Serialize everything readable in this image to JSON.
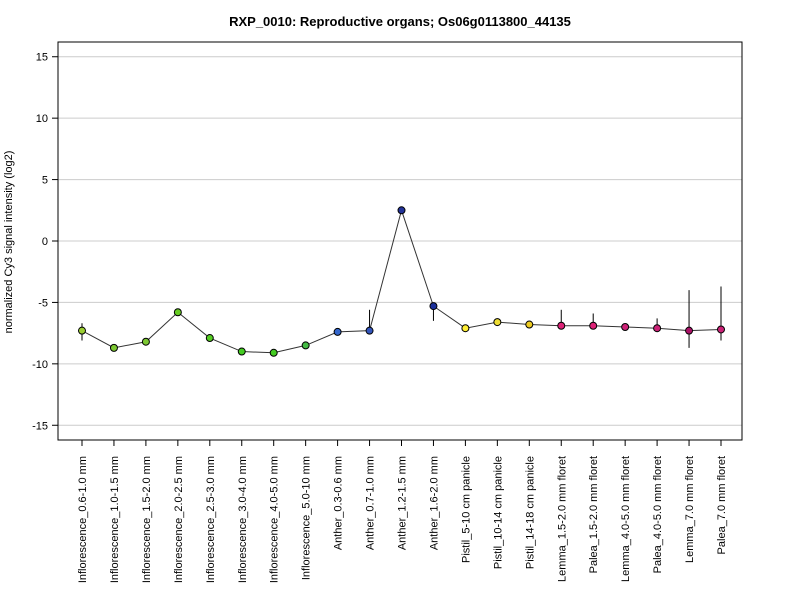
{
  "chart_data": {
    "type": "line",
    "title": "RXP_0010: Reproductive organs; Os06g0113800_44135",
    "ylabel": "normalized Cy3 signal intensity (log2)",
    "xlabel": "",
    "ylim": [
      -16.2,
      16.2
    ],
    "yticks": [
      15,
      10,
      5,
      0,
      -5,
      -10,
      -15
    ],
    "grid": true,
    "categories": [
      "Inflorescence_0.6-1.0 mm",
      "Inflorescence_1.0-1.5 mm",
      "Inflorescence_1.5-2.0 mm",
      "Inflorescence_2.0-2.5 mm",
      "Inflorescence_2.5-3.0 mm",
      "Inflorescence_3.0-4.0 mm",
      "Inflorescence_4.0-5.0 mm",
      "Inflorescence_5.0-10 mm",
      "Anther_0.3-0.6 mm",
      "Anther_0.7-1.0 mm",
      "Anther_1.2-1.5 mm",
      "Anther_1.6-2.0 mm",
      "Pistil_5-10 cm panicle",
      "Pistil_10-14 cm panicle",
      "Pistil_14-18 cm panicle",
      "Lemma_1.5-2.0 mm floret",
      "Palea_1.5-2.0 mm floret",
      "Lemma_4.0-5.0 mm floret",
      "Palea_4.0-5.0 mm floret",
      "Lemma_7.0 mm floret",
      "Palea_7.0 mm floret"
    ],
    "values": [
      -7.3,
      -8.7,
      -8.2,
      -5.8,
      -7.9,
      -9.0,
      -9.1,
      -8.5,
      -7.4,
      -7.3,
      2.5,
      -5.3,
      -7.1,
      -6.6,
      -6.8,
      -6.9,
      -6.9,
      -7.0,
      -7.1,
      -7.3,
      -7.2
    ],
    "error_low": [
      -8.1,
      -8.9,
      -8.5,
      -5.9,
      -8.1,
      -9.1,
      -9.2,
      -8.6,
      -7.5,
      -7.5,
      2.4,
      -6.5,
      -7.2,
      -6.9,
      -7.1,
      -7.1,
      -7.2,
      -7.2,
      -7.3,
      -8.7,
      -8.1
    ],
    "error_high": [
      -6.7,
      -8.6,
      -7.9,
      -5.7,
      -7.7,
      -8.9,
      -9.0,
      -8.4,
      -7.3,
      -5.6,
      2.6,
      -5.1,
      -7.0,
      -6.3,
      -6.6,
      -5.6,
      -5.9,
      -6.9,
      -6.3,
      -4.0,
      -3.7
    ],
    "point_colors": [
      "#9acd32",
      "#7cc832",
      "#7cc832",
      "#66cc22",
      "#55cc22",
      "#44cc22",
      "#44cc22",
      "#44bb44",
      "#3366cc",
      "#3355bb",
      "#223399",
      "#1a2f9a",
      "#ffee33",
      "#eedd33",
      "#eecc22",
      "#dd2277",
      "#dd2277",
      "#cc2277",
      "#cc2277",
      "#aa1166",
      "#cc2277"
    ],
    "line_color": "#333333"
  }
}
